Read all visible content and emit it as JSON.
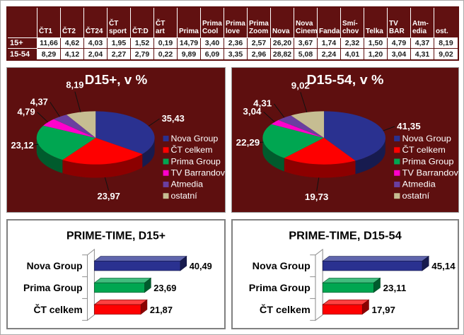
{
  "colors": {
    "maroon_background": "#5e0f0f",
    "table_header_bg": "#611111",
    "table_grid": "#5e0f0f",
    "nova_group": "#2a3190",
    "ct_celkem": "#fe0000",
    "prima_group": "#00a651",
    "tv_barrandov": "#ff00cc",
    "atmedia": "#6a3fa0",
    "ostatni": "#c6bd92",
    "panel_border": "#808080",
    "text_white": "#ffffff",
    "text_dark": "#1a1a1a"
  },
  "table": {
    "corner_label": "",
    "columns": [
      "ČT1",
      "ČT2",
      "ČT24",
      "ČT\nsport",
      "ČT:D",
      "ČT\nart",
      "Prima",
      "Prima\nCool",
      "Prima\nlove",
      "Prima\nZoom",
      "Nova",
      "Nova\nCinema",
      "Fanda",
      "Smí-\nchov",
      "Telka",
      "TV\nBAR",
      "Atm-\nedia",
      "ost."
    ],
    "rows": [
      {
        "label": "15+",
        "values": [
          "11,66",
          "4,62",
          "4,03",
          "1,95",
          "1,52",
          "0,19",
          "14,79",
          "3,40",
          "2,36",
          "2,57",
          "26,20",
          "3,67",
          "1,74",
          "2,32",
          "1,50",
          "4,79",
          "4,37",
          "8,19"
        ]
      },
      {
        "label": "15-54",
        "values": [
          "8,29",
          "4,12",
          "2,04",
          "2,27",
          "2,79",
          "0,22",
          "9,89",
          "6,09",
          "3,35",
          "2,96",
          "28,82",
          "5,08",
          "2,24",
          "4,01",
          "1,20",
          "3,04",
          "4,31",
          "9,02"
        ]
      }
    ]
  },
  "chart_data": [
    {
      "type": "pie",
      "style": "3d",
      "title": "D15+, v %",
      "background": "#5e0f0f",
      "legend_position": "right",
      "labels": [
        "Nova Group",
        "ČT celkem",
        "Prima Group",
        "TV Barrandov",
        "Atmedia",
        "ostatní"
      ],
      "values": [
        35.43,
        23.97,
        23.12,
        4.79,
        4.37,
        8.19
      ],
      "value_labels": [
        "35,43",
        "23,97",
        "23,12",
        "4,79",
        "4,37",
        "8,19"
      ],
      "colors": [
        "#2a3190",
        "#fe0000",
        "#00a651",
        "#ff00cc",
        "#6a3fa0",
        "#c6bd92"
      ]
    },
    {
      "type": "pie",
      "style": "3d",
      "title": "D15-54, v %",
      "background": "#5e0f0f",
      "legend_position": "right",
      "labels": [
        "Nova Group",
        "ČT celkem",
        "Prima Group",
        "TV Barrandov",
        "Atmedia",
        "ostatní"
      ],
      "values": [
        41.35,
        19.73,
        22.29,
        3.04,
        4.31,
        9.02
      ],
      "value_labels": [
        "41,35",
        "19,73",
        "22,29",
        "3,04",
        "4,31",
        "9,02"
      ],
      "colors": [
        "#2a3190",
        "#fe0000",
        "#00a651",
        "#ff00cc",
        "#6a3fa0",
        "#c6bd92"
      ]
    },
    {
      "type": "bar",
      "style": "3d",
      "orientation": "horizontal",
      "title": "PRIME-TIME, D15+",
      "background": "#ffffff",
      "grid": false,
      "xlim": [
        0,
        50
      ],
      "categories": [
        "Nova Group",
        "Prima Group",
        "ČT celkem"
      ],
      "values": [
        40.49,
        23.69,
        21.87
      ],
      "value_labels": [
        "40,49",
        "23,69",
        "21,87"
      ],
      "colors": [
        "#2a3190",
        "#00a651",
        "#fe0000"
      ]
    },
    {
      "type": "bar",
      "style": "3d",
      "orientation": "horizontal",
      "title": "PRIME-TIME, D15-54",
      "background": "#ffffff",
      "grid": false,
      "xlim": [
        0,
        50
      ],
      "categories": [
        "Nova Group",
        "Prima Group",
        "ČT celkem"
      ],
      "values": [
        45.14,
        23.11,
        17.97
      ],
      "value_labels": [
        "45,14",
        "23,11",
        "17,97"
      ],
      "colors": [
        "#2a3190",
        "#00a651",
        "#fe0000"
      ]
    }
  ]
}
